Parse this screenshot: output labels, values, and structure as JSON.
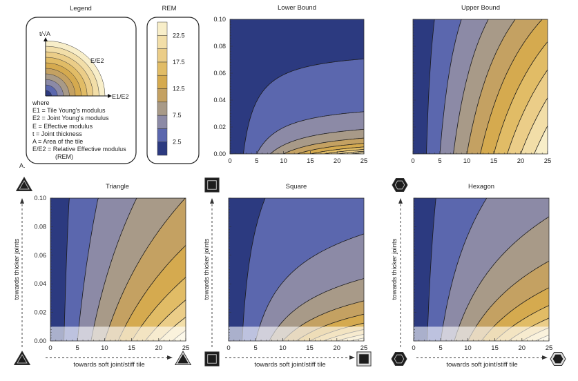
{
  "legend": {
    "title": "Legend",
    "y_axis": "t/√A",
    "x_axis": "E1/E2",
    "curve_label": "E/E2",
    "where": "where",
    "definitions": [
      "E1 = Tile Young's modulus",
      "E2 = Joint Young's modulus",
      "E   = Effective modulus",
      "t    = Joint thickness",
      "A   = Area of the tile",
      "E/E2 = Relative Effective modulus",
      "(REM)"
    ],
    "panel_label": "A."
  },
  "colorbar": {
    "title": "REM",
    "ticks": [
      "2.5",
      "7.5",
      "12.5",
      "17.5",
      "22.5"
    ],
    "colors": [
      "#2c3a80",
      "#5b67ae",
      "#8c8aa6",
      "#a89a88",
      "#c4a162",
      "#d5aa4f",
      "#e1bc66",
      "#ebcd88",
      "#f2dea8",
      "#f8eec9"
    ]
  },
  "axis_labels": {
    "y": "towards thicker joints",
    "x": "towards soft joint/stiff tile"
  },
  "chart_data": [
    {
      "type": "contour",
      "title": "Lower Bound",
      "xlim": [
        0,
        25
      ],
      "ylim": [
        0,
        0.1
      ],
      "x_ticks": [
        "0",
        "5",
        "10",
        "15",
        "20",
        "25"
      ],
      "y_ticks": [
        "0.00",
        "0.02",
        "0.04",
        "0.06",
        "0.08",
        "0.10"
      ],
      "levels": [
        2.5,
        5,
        7.5,
        10,
        12.5,
        15,
        17.5,
        20,
        22.5
      ]
    },
    {
      "type": "contour",
      "title": "Upper Bound",
      "xlim": [
        0,
        25
      ],
      "ylim": [
        0,
        0.1
      ],
      "x_ticks": [
        "0",
        "5",
        "10",
        "15",
        "20",
        "25"
      ],
      "y_ticks": [],
      "levels": [
        2.5,
        5,
        7.5,
        10,
        12.5,
        15,
        17.5,
        20,
        22.5
      ]
    },
    {
      "type": "contour",
      "title": "Triangle",
      "shape": "triangle",
      "xlim": [
        0,
        25
      ],
      "ylim": [
        0,
        0.1
      ],
      "x_ticks": [
        "0",
        "5",
        "10",
        "15",
        "20",
        "25"
      ],
      "y_ticks": [
        "0.00",
        "0.02",
        "0.04",
        "0.06",
        "0.08",
        "0.10"
      ],
      "levels": [
        2.5,
        5,
        7.5,
        10,
        12.5,
        15,
        17.5,
        20,
        22.5
      ],
      "shaded_below_y": 0.01
    },
    {
      "type": "contour",
      "title": "Square",
      "shape": "square",
      "xlim": [
        0,
        25
      ],
      "ylim": [
        0,
        0.1
      ],
      "x_ticks": [
        "0",
        "5",
        "10",
        "15",
        "20",
        "25"
      ],
      "y_ticks": [],
      "levels": [
        2.5,
        5,
        7.5,
        10,
        12.5,
        15,
        17.5,
        20,
        22.5
      ],
      "shaded_below_y": 0.01
    },
    {
      "type": "contour",
      "title": "Hexagon",
      "shape": "hexagon",
      "xlim": [
        0,
        25
      ],
      "ylim": [
        0,
        0.1
      ],
      "x_ticks": [
        "0",
        "5",
        "10",
        "15",
        "20",
        "25"
      ],
      "y_ticks": [],
      "levels": [
        2.5,
        5,
        7.5,
        10,
        12.5,
        15,
        17.5,
        20,
        22.5
      ],
      "shaded_below_y": 0.01
    }
  ]
}
